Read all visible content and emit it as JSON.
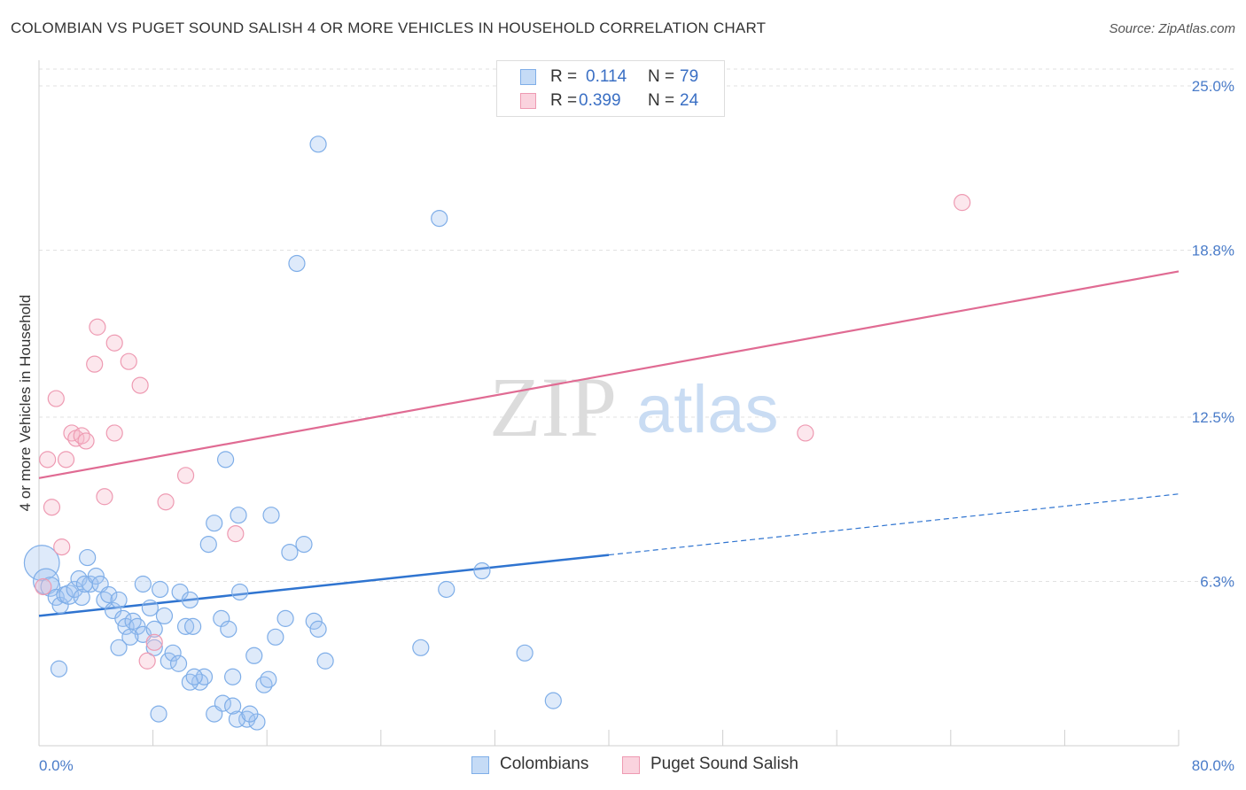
{
  "title": "COLOMBIAN VS PUGET SOUND SALISH 4 OR MORE VEHICLES IN HOUSEHOLD CORRELATION CHART",
  "source": "Source: ZipAtlas.com",
  "watermark": {
    "zip": "ZIP",
    "atlas": "atlas"
  },
  "legend": {
    "rows": [
      {
        "r_label": "R =",
        "r_value": "0.114",
        "n_label": "N =",
        "n_value": "79",
        "color": "#7faee8",
        "fill": "#c5dbf6"
      },
      {
        "r_label": "R =",
        "r_value": "0.399",
        "n_label": "N =",
        "n_value": "24",
        "color": "#ee9ab2",
        "fill": "#fad3de"
      }
    ]
  },
  "bottom_legend": [
    {
      "label": "Colombians",
      "color": "#7faee8",
      "fill": "#c5dbf6"
    },
    {
      "label": "Puget Sound Salish",
      "color": "#ee9ab2",
      "fill": "#fad3de"
    }
  ],
  "chart_data": {
    "type": "scatter",
    "title": "COLOMBIAN VS PUGET SOUND SALISH 4 OR MORE VEHICLES IN HOUSEHOLD CORRELATION CHART",
    "xlabel": "",
    "ylabel": "4 or more Vehicles in Household",
    "xlim": [
      0,
      80
    ],
    "ylim": [
      0,
      26
    ],
    "x_tick_labels": [
      "0.0%",
      "80.0%"
    ],
    "y_ticks": [
      6.3,
      12.5,
      18.8,
      25.0
    ],
    "y_tick_labels": [
      "6.3%",
      "12.5%",
      "18.8%",
      "25.0%"
    ],
    "grid": true,
    "legend_position": "top-center",
    "colors": {
      "colombians": "#7faee8",
      "colombians_line": "#2f74d0",
      "salish": "#ee9ab2",
      "salish_line": "#e06b93"
    },
    "series": [
      {
        "name": "Colombians",
        "trend": {
          "x": [
            0,
            40
          ],
          "y": [
            5.0,
            7.3
          ],
          "dashed_to": [
            80,
            9.6
          ]
        },
        "points": [
          [
            0.2,
            7.0,
            2.2
          ],
          [
            0.5,
            6.3,
            1.6
          ],
          [
            0.8,
            6.1,
            1.2
          ],
          [
            1.2,
            5.7,
            1.0
          ],
          [
            1.5,
            5.4,
            1.0
          ],
          [
            1.8,
            5.8,
            1.0
          ],
          [
            2.1,
            5.8,
            1.2
          ],
          [
            2.5,
            6.0,
            1.0
          ],
          [
            2.8,
            6.4,
            1.0
          ],
          [
            3.0,
            5.7,
            1.0
          ],
          [
            3.4,
            7.2,
            1.0
          ],
          [
            3.6,
            6.2,
            1.0
          ],
          [
            3.2,
            6.2,
            1.0
          ],
          [
            4.0,
            6.5,
            1.0
          ],
          [
            4.3,
            6.2,
            1.0
          ],
          [
            4.6,
            5.6,
            1.0
          ],
          [
            4.9,
            5.8,
            1.0
          ],
          [
            5.2,
            5.2,
            1.0
          ],
          [
            5.6,
            5.6,
            1.0
          ],
          [
            5.9,
            4.9,
            1.0
          ],
          [
            6.1,
            4.6,
            1.0
          ],
          [
            6.6,
            4.8,
            1.0
          ],
          [
            6.9,
            4.6,
            1.0
          ],
          [
            7.3,
            4.3,
            1.0
          ],
          [
            5.6,
            3.8,
            1.0
          ],
          [
            6.4,
            4.2,
            1.0
          ],
          [
            7.8,
            5.3,
            1.0
          ],
          [
            8.1,
            4.5,
            1.0
          ],
          [
            8.5,
            6.0,
            1.0
          ],
          [
            8.8,
            5.0,
            1.0
          ],
          [
            9.1,
            3.3,
            1.0
          ],
          [
            9.4,
            3.6,
            1.0
          ],
          [
            9.9,
            5.9,
            1.0
          ],
          [
            8.1,
            3.8,
            1.0
          ],
          [
            7.3,
            6.2,
            1.0
          ],
          [
            10.3,
            4.6,
            1.0
          ],
          [
            10.6,
            5.6,
            1.0
          ],
          [
            10.8,
            4.6,
            1.0
          ],
          [
            11.3,
            2.5,
            1.0
          ],
          [
            11.6,
            2.7,
            1.0
          ],
          [
            11.9,
            7.7,
            1.0
          ],
          [
            12.3,
            8.5,
            1.0
          ],
          [
            12.8,
            4.9,
            1.0
          ],
          [
            13.1,
            10.9,
            1.0
          ],
          [
            13.3,
            4.5,
            1.0
          ],
          [
            13.6,
            2.7,
            1.0
          ],
          [
            14.1,
            5.9,
            1.0
          ],
          [
            14.0,
            8.8,
            1.0
          ],
          [
            15.1,
            3.5,
            1.0
          ],
          [
            15.8,
            2.4,
            1.0
          ],
          [
            16.1,
            2.6,
            1.0
          ],
          [
            16.6,
            4.2,
            1.0
          ],
          [
            17.3,
            4.9,
            1.0
          ],
          [
            17.6,
            7.4,
            1.0
          ],
          [
            18.6,
            7.7,
            1.0
          ],
          [
            19.3,
            4.8,
            1.0
          ],
          [
            19.6,
            4.5,
            1.0
          ],
          [
            20.1,
            3.3,
            1.0
          ],
          [
            14.6,
            1.1,
            1.0
          ],
          [
            15.3,
            1.0,
            1.0
          ],
          [
            12.3,
            1.3,
            1.0
          ],
          [
            12.9,
            1.7,
            1.0
          ],
          [
            13.9,
            1.1,
            1.0
          ],
          [
            14.8,
            1.3,
            1.0
          ],
          [
            10.6,
            2.5,
            1.0
          ],
          [
            10.9,
            2.7,
            1.0
          ],
          [
            8.4,
            1.3,
            1.0
          ],
          [
            9.8,
            3.2,
            1.0
          ],
          [
            13.6,
            1.6,
            1.0
          ],
          [
            16.3,
            8.8,
            1.0
          ],
          [
            18.1,
            18.3,
            1.0
          ],
          [
            19.6,
            22.8,
            1.0
          ],
          [
            28.1,
            20.0,
            1.0
          ],
          [
            28.6,
            6.0,
            1.0
          ],
          [
            31.1,
            6.7,
            1.0
          ],
          [
            26.8,
            3.8,
            1.0
          ],
          [
            34.1,
            3.6,
            1.0
          ],
          [
            36.1,
            1.8,
            1.0
          ],
          [
            1.4,
            3.0,
            1.0
          ]
        ]
      },
      {
        "name": "Puget Sound Salish",
        "trend": {
          "x": [
            0,
            80
          ],
          "y": [
            10.2,
            18.0
          ]
        },
        "points": [
          [
            0.3,
            6.1,
            1.0
          ],
          [
            0.6,
            10.9,
            1.0
          ],
          [
            0.9,
            9.1,
            1.0
          ],
          [
            1.2,
            13.2,
            1.0
          ],
          [
            1.6,
            7.6,
            1.0
          ],
          [
            1.9,
            10.9,
            1.0
          ],
          [
            2.3,
            11.9,
            1.0
          ],
          [
            2.6,
            11.7,
            1.0
          ],
          [
            3.0,
            11.8,
            1.0
          ],
          [
            3.3,
            11.6,
            1.0
          ],
          [
            4.1,
            15.9,
            1.0
          ],
          [
            3.9,
            14.5,
            1.0
          ],
          [
            4.6,
            9.5,
            1.0
          ],
          [
            5.3,
            15.3,
            1.0
          ],
          [
            5.3,
            11.9,
            1.0
          ],
          [
            6.3,
            14.6,
            1.0
          ],
          [
            7.1,
            13.7,
            1.0
          ],
          [
            8.9,
            9.3,
            1.0
          ],
          [
            10.3,
            10.3,
            1.0
          ],
          [
            8.1,
            4.0,
            1.0
          ],
          [
            7.6,
            3.3,
            1.0
          ],
          [
            13.8,
            8.1,
            1.0
          ],
          [
            64.8,
            20.6,
            1.0
          ],
          [
            53.8,
            11.9,
            1.0
          ]
        ]
      }
    ]
  }
}
